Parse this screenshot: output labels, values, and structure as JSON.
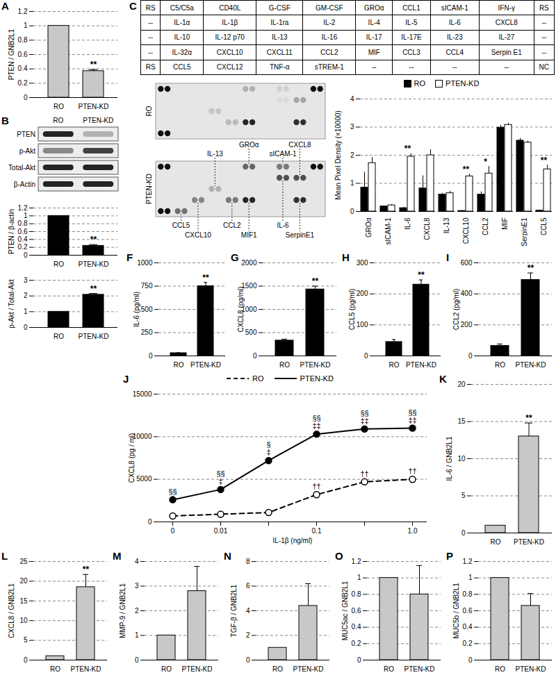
{
  "chart_data": [
    {
      "title": "A",
      "type": "bar",
      "categories": [
        "RO",
        "PTEN-KD"
      ],
      "values": [
        1,
        0.37
      ],
      "errors": [
        0,
        0.02
      ],
      "color": "#c8c8c8",
      "ylabel": "PTEN / GNB2L1",
      "ylim": [
        0,
        1.2
      ],
      "yticks": [
        0,
        0.2,
        0.4,
        0.6,
        0.8,
        1,
        1.2
      ],
      "grid": true,
      "annotations": [
        {
          "category": "PTEN-KD",
          "text": "**"
        }
      ]
    },
    {
      "type": "bar",
      "categories": [
        "RO",
        "PTEN-KD"
      ],
      "values": [
        1,
        0.24
      ],
      "errors": [
        0,
        0.03
      ],
      "color": "#000000",
      "ylabel": "PTEN / β-actin",
      "ylim": [
        0,
        1.2
      ],
      "yticks": [
        0,
        0.2,
        0.4,
        0.6,
        0.8,
        1,
        1.2
      ],
      "grid": true,
      "annotations": [
        {
          "category": "PTEN-KD",
          "text": "**"
        }
      ]
    },
    {
      "type": "bar",
      "categories": [
        "RO",
        "PTEN-KD"
      ],
      "values": [
        1,
        2.08
      ],
      "errors": [
        0,
        0.08
      ],
      "color": "#000000",
      "ylabel": "p-Akt / Total-Akt",
      "ylim": [
        0,
        3
      ],
      "yticks": [
        0,
        1,
        2,
        3
      ],
      "grid": true,
      "annotations": [
        {
          "category": "PTEN-KD",
          "text": "**"
        }
      ]
    },
    {
      "type": "bar",
      "categories": [
        "GROα",
        "sICAM-1",
        "IL-6",
        "CXCL8",
        "IL-13",
        "CXCL10",
        "CCL2",
        "MIF",
        "SerpinE1",
        "CCL5"
      ],
      "series": [
        {
          "name": "RO",
          "color": "#000000",
          "values": [
            0.85,
            0.18,
            0.12,
            0.82,
            0.6,
            0.02,
            0.6,
            2.98,
            2.52,
            0.03
          ],
          "errors": [
            0.55,
            0.02,
            0.03,
            0.45,
            0.05,
            0.01,
            0.1,
            0.08,
            0.08,
            0.02
          ]
        },
        {
          "name": "PTEN-KD",
          "color": "#ffffff",
          "values": [
            1.72,
            0.22,
            1.95,
            2.0,
            0.65,
            1.25,
            1.35,
            3.08,
            2.45,
            1.5
          ],
          "errors": [
            0.2,
            0.03,
            0.1,
            0.2,
            0.07,
            0.08,
            0.25,
            0.06,
            0.05,
            0.15
          ]
        }
      ],
      "ylabel": "Mean Pixel Density (×10000)",
      "ylim": [
        0,
        4
      ],
      "yticks": [
        0,
        1,
        2,
        3,
        4
      ],
      "grid": true,
      "legend": "top",
      "annotations": [
        {
          "category": "IL-6",
          "text": "**"
        },
        {
          "category": "CXCL10",
          "text": "**"
        },
        {
          "category": "CCL2",
          "text": "*"
        },
        {
          "category": "CCL5",
          "text": "**"
        }
      ]
    },
    {
      "title": "F",
      "type": "bar",
      "categories": [
        "RO",
        "PTEN-KD"
      ],
      "values": [
        30,
        750
      ],
      "errors": [
        5,
        40
      ],
      "color": "#000000",
      "ylabel": "IL-6 (pg/ml)",
      "ylim": [
        0,
        1000
      ],
      "yticks": [
        0,
        250,
        500,
        750,
        1000
      ],
      "grid": true,
      "annotations": [
        {
          "category": "PTEN-KD",
          "text": "**"
        }
      ]
    },
    {
      "title": "G",
      "type": "bar",
      "categories": [
        "RO",
        "PTEN-KD"
      ],
      "values": [
        330,
        1430
      ],
      "errors": [
        30,
        70
      ],
      "color": "#000000",
      "ylabel": "CXCL8 (pg/ml)",
      "ylim": [
        0,
        2000
      ],
      "yticks": [
        0,
        500,
        1000,
        1500,
        2000
      ],
      "grid": true,
      "annotations": [
        {
          "category": "PTEN-KD",
          "text": "**"
        }
      ]
    },
    {
      "title": "H",
      "type": "bar",
      "categories": [
        "RO",
        "PTEN-KD"
      ],
      "values": [
        45,
        230
      ],
      "errors": [
        8,
        15
      ],
      "color": "#000000",
      "ylabel": "CCL5 (pg/ml)",
      "ylim": [
        0,
        300
      ],
      "yticks": [
        0,
        100,
        200,
        300
      ],
      "grid": true,
      "annotations": [
        {
          "category": "PTEN-KD",
          "text": "**"
        }
      ]
    },
    {
      "title": "I",
      "type": "bar",
      "categories": [
        "RO",
        "PTEN-KD"
      ],
      "values": [
        65,
        490
      ],
      "errors": [
        12,
        45
      ],
      "color": "#000000",
      "ylabel": "CCL2 (pg/ml)",
      "ylim": [
        0,
        600
      ],
      "yticks": [
        0,
        200,
        400,
        600
      ],
      "grid": true,
      "annotations": [
        {
          "category": "PTEN-KD",
          "text": "**"
        }
      ]
    },
    {
      "title": "J",
      "type": "line",
      "categories": [
        "0",
        "0.01",
        null,
        "0.1",
        null,
        "1.0"
      ],
      "series": [
        {
          "name": "RO",
          "color": "#000000",
          "line_style": "dashed",
          "marker": "open circle",
          "values": [
            700,
            900,
            1100,
            3200,
            4700,
            5000
          ]
        },
        {
          "name": "PTEN-KD",
          "color": "#000000",
          "line_style": "solid",
          "marker": "filled circle",
          "values": [
            2600,
            3800,
            7200,
            10300,
            10900,
            11000
          ]
        }
      ],
      "xlabel": "IL-1β (ng/ml)",
      "ylabel": "CXCL8 (pg / ml)",
      "ylim": [
        0,
        15000
      ],
      "yticks": [
        0,
        5000,
        10000,
        15000
      ],
      "grid": true,
      "legend": "top",
      "annotations": [
        {
          "index": 0,
          "series": "PTEN-KD",
          "text": "§§"
        },
        {
          "index": 1,
          "series": "PTEN-KD",
          "text": "§§\n‡"
        },
        {
          "index": 2,
          "series": "PTEN-KD",
          "text": "§\n‡"
        },
        {
          "index": 3,
          "series": "PTEN-KD",
          "text": "§§\n‡‡"
        },
        {
          "index": 4,
          "series": "PTEN-KD",
          "text": "§§\n‡‡"
        },
        {
          "index": 5,
          "series": "PTEN-KD",
          "text": "§§\n‡‡"
        },
        {
          "index": 3,
          "series": "RO",
          "text": "††"
        },
        {
          "index": 4,
          "series": "RO",
          "text": "††"
        },
        {
          "index": 5,
          "series": "RO",
          "text": "††"
        }
      ]
    },
    {
      "title": "K",
      "type": "bar",
      "categories": [
        "RO",
        "PTEN-KD"
      ],
      "values": [
        1,
        13
      ],
      "errors": [
        0,
        1.8
      ],
      "color": "#c8c8c8",
      "ylabel": "IL-6 / GNB2L1",
      "ylim": [
        0,
        20
      ],
      "yticks": [
        0,
        5,
        10,
        15,
        20
      ],
      "grid": true,
      "annotations": [
        {
          "category": "PTEN-KD",
          "text": "**"
        }
      ]
    },
    {
      "title": "L",
      "type": "bar",
      "categories": [
        "RO",
        "PTEN-KD"
      ],
      "values": [
        1,
        18.5
      ],
      "errors": [
        0,
        3.2
      ],
      "color": "#c8c8c8",
      "ylabel": "CXCL8 / GNB2L1",
      "ylim": [
        0,
        25
      ],
      "yticks": [
        0,
        5,
        10,
        15,
        20,
        25
      ],
      "grid": true,
      "annotations": [
        {
          "category": "PTEN-KD",
          "text": "**"
        }
      ]
    },
    {
      "title": "M",
      "type": "bar",
      "categories": [
        "RO",
        "PTEN-KD"
      ],
      "values": [
        1,
        2.8
      ],
      "errors": [
        0,
        1.0
      ],
      "color": "#c8c8c8",
      "ylabel": "MMP-9 / GNB2L1",
      "ylim": [
        0,
        4
      ],
      "yticks": [
        0,
        1,
        2,
        3,
        4
      ],
      "grid": true
    },
    {
      "title": "N",
      "type": "bar",
      "categories": [
        "RO",
        "PTEN-KD"
      ],
      "values": [
        1,
        4.4
      ],
      "errors": [
        0,
        1.8
      ],
      "color": "#c8c8c8",
      "ylabel": "TGF-β / GNB2L1",
      "ylim": [
        0,
        8
      ],
      "yticks": [
        0,
        2,
        4,
        6,
        8
      ],
      "grid": true
    },
    {
      "title": "O",
      "type": "bar",
      "categories": [
        "RO",
        "PTEN-KD"
      ],
      "values": [
        1,
        0.8
      ],
      "errors": [
        0,
        0.35
      ],
      "color": "#c8c8c8",
      "ylabel": "MUC5ac / GNB2L1",
      "ylim": [
        0,
        1.2
      ],
      "yticks": [
        0,
        0.2,
        0.4,
        0.6,
        0.8,
        1,
        1.2
      ],
      "grid": true
    },
    {
      "title": "P",
      "type": "bar",
      "categories": [
        "RO",
        "PTEN-KD"
      ],
      "values": [
        1,
        0.66
      ],
      "errors": [
        0,
        0.15
      ],
      "color": "#c8c8c8",
      "ylabel": "MUC5b / GNB2L1",
      "ylim": [
        0,
        1.2
      ],
      "yticks": [
        0,
        0.2,
        0.4,
        0.6,
        0.8,
        1,
        1.2
      ],
      "grid": true
    }
  ],
  "western_blot": {
    "title": "B",
    "columns": [
      "RO",
      "PTEN-KD"
    ],
    "rows": [
      {
        "label": "PTEN",
        "intensity": [
          0.95,
          0.25
        ]
      },
      {
        "label": "p-Akt",
        "intensity": [
          0.45,
          0.8
        ]
      },
      {
        "label": "Total-Akt",
        "intensity": [
          0.95,
          0.95
        ]
      },
      {
        "label": "β-Actin",
        "intensity": [
          0.95,
          0.95
        ]
      }
    ]
  },
  "cytokine_array": {
    "title": "C",
    "layout": [
      [
        "RS",
        "C5/C5a",
        "CD40L",
        "G-CSF",
        "GM-CSF",
        "GROα",
        "CCL1",
        "sICAM-1",
        "IFN-γ",
        "RS"
      ],
      [
        "--",
        "IL-1α",
        "IL-1β",
        "IL-1ra",
        "IL-2",
        "IL-4",
        "IL-5",
        "IL-6",
        "CXCL8",
        "--"
      ],
      [
        "--",
        "IL-10",
        "IL-12 p70",
        "IL-13",
        "IL-16",
        "IL-17",
        "IL-17E",
        "IL-23",
        "IL-27",
        "--"
      ],
      [
        "--",
        "IL-32α",
        "CXCL10",
        "CXCL11",
        "CCL2",
        "MIF",
        "CCL3",
        "CCL4",
        "Serpin E1",
        "--"
      ],
      [
        "RS",
        "CCL5",
        "CXCL12",
        "TNF-α",
        "sTREM-1",
        "--",
        "--",
        "--",
        "--",
        "NC"
      ]
    ],
    "membranes": [
      "RO",
      "PTEN-KD"
    ],
    "spots": [
      {
        "row": 0,
        "col": 0,
        "intensity": [
          1,
          1
        ]
      },
      {
        "row": 0,
        "col": 9,
        "intensity": [
          1,
          1
        ]
      },
      {
        "row": 4,
        "col": 0,
        "intensity": [
          1,
          1
        ]
      },
      {
        "row": 0,
        "col": 5,
        "intensity": [
          0.25,
          0.6
        ]
      },
      {
        "row": 0,
        "col": 7,
        "intensity": [
          0.1,
          0.5
        ]
      },
      {
        "row": 1,
        "col": 7,
        "intensity": [
          0.05,
          0.7
        ]
      },
      {
        "row": 1,
        "col": 8,
        "intensity": [
          0.3,
          0.7
        ]
      },
      {
        "row": 2,
        "col": 3,
        "intensity": [
          0.15,
          0.25
        ]
      },
      {
        "row": 3,
        "col": 2,
        "intensity": [
          0,
          0.45
        ]
      },
      {
        "row": 3,
        "col": 4,
        "intensity": [
          0.2,
          0.5
        ]
      },
      {
        "row": 3,
        "col": 5,
        "intensity": [
          0.9,
          0.9
        ]
      },
      {
        "row": 3,
        "col": 8,
        "intensity": [
          0.85,
          0.85
        ]
      },
      {
        "row": 4,
        "col": 1,
        "intensity": [
          0,
          0.55
        ]
      }
    ],
    "callouts_above": [
      {
        "text": "IL-13",
        "row": 2,
        "col": 3
      },
      {
        "text": "GROα",
        "row": 0,
        "col": 5
      },
      {
        "text": "sICAM-1",
        "row": 0,
        "col": 7
      },
      {
        "text": "CXCL8",
        "row": 1,
        "col": 8
      }
    ],
    "callouts_below": [
      {
        "text": "CCL5",
        "row": 4,
        "col": 1
      },
      {
        "text": "CXCL10",
        "row": 3,
        "col": 2
      },
      {
        "text": "CCL2",
        "row": 3,
        "col": 4
      },
      {
        "text": "MIF1",
        "row": 3,
        "col": 5
      },
      {
        "text": "IL-6",
        "row": 1,
        "col": 7
      },
      {
        "text": "SerpinE1",
        "row": 3,
        "col": 8
      }
    ]
  }
}
